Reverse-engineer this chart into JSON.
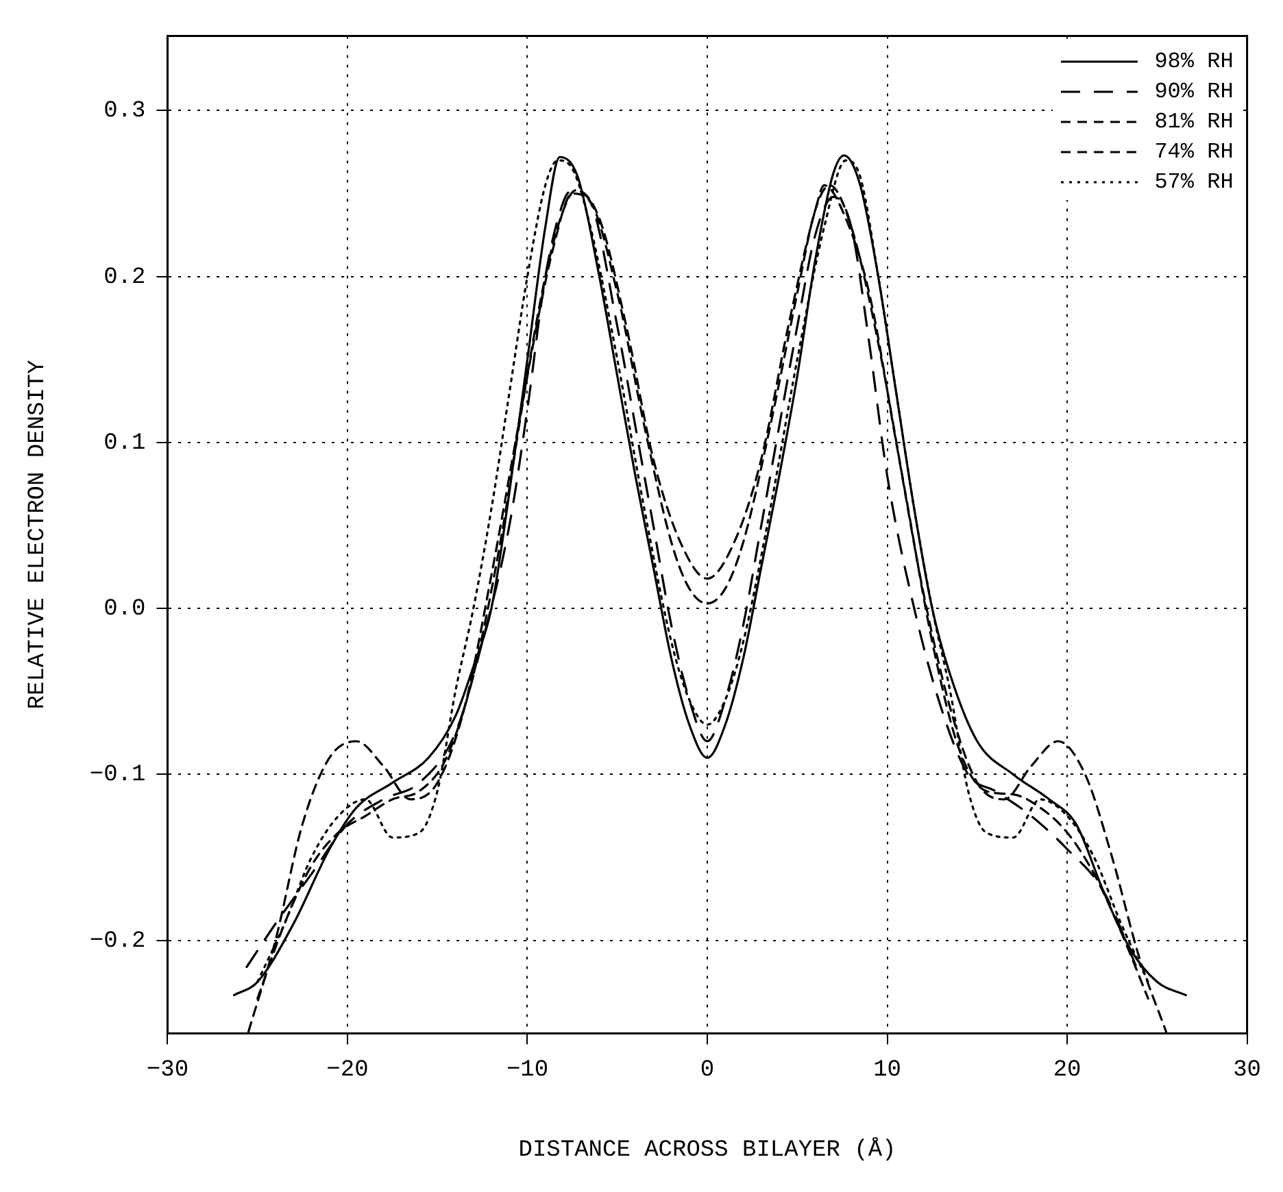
{
  "chart_data": {
    "type": "line",
    "xlabel": "DISTANCE ACROSS BILAYER (Å)",
    "ylabel": "RELATIVE ELECTRON DENSITY",
    "xlim": [
      -30,
      30
    ],
    "xticks": [
      {
        "value": -30,
        "label": "−30"
      },
      {
        "value": -20,
        "label": "−20"
      },
      {
        "value": -10,
        "label": "−10"
      },
      0,
      10,
      20,
      30
    ],
    "ylim": [
      -0.256,
      0.345
    ],
    "yticks": [
      {
        "value": -0.2,
        "label": "−0.2"
      },
      {
        "value": -0.1,
        "label": "−0.1"
      },
      {
        "value": 0,
        "label": "0.0"
      },
      0.1,
      0.2,
      0.3
    ],
    "grid": true,
    "legend": "top right",
    "marker": "none",
    "series": [
      {
        "name": "98% RH",
        "color": "#000000",
        "line_style": "solid",
        "x": [
          -26.3,
          -25,
          -23,
          -21,
          -19.5,
          -17.5,
          -15.5,
          -14,
          -13,
          -12,
          -11,
          -10,
          -9,
          -8.2,
          -7.2,
          -6,
          -5,
          -4,
          -3,
          -2,
          -1,
          0,
          1,
          2,
          3,
          4,
          5,
          6,
          7,
          7.6,
          8.5,
          9.5,
          10.5,
          11.5,
          12.5,
          13.5,
          15,
          17,
          19,
          20.5,
          22,
          23.5,
          25,
          26.6
        ],
        "values": [
          -0.233,
          -0.225,
          -0.19,
          -0.145,
          -0.12,
          -0.105,
          -0.09,
          -0.065,
          -0.035,
          0,
          0.07,
          0.15,
          0.23,
          0.272,
          0.26,
          0.2,
          0.14,
          0.08,
          0.025,
          -0.03,
          -0.07,
          -0.09,
          -0.07,
          -0.03,
          0.025,
          0.08,
          0.14,
          0.21,
          0.262,
          0.273,
          0.255,
          0.2,
          0.13,
          0.06,
          0.0,
          -0.04,
          -0.08,
          -0.1,
          -0.115,
          -0.13,
          -0.17,
          -0.205,
          -0.225,
          -0.233
        ]
      },
      {
        "name": "90% RH",
        "color": "#000000",
        "line_style": "dashed",
        "x": [
          -25.6,
          -24,
          -22,
          -20,
          -18,
          -16,
          -14,
          -12.5,
          -11,
          -10,
          -9,
          -8,
          -7.5,
          -6.5,
          -5,
          -4,
          -3,
          -2,
          -1,
          0,
          1,
          2,
          3,
          4,
          5,
          6,
          7,
          8,
          9,
          10,
          11.5,
          13,
          14.5,
          16,
          18,
          20,
          22,
          24
        ],
        "values": [
          -0.216,
          -0.19,
          -0.16,
          -0.13,
          -0.115,
          -0.105,
          -0.075,
          -0.02,
          0.05,
          0.12,
          0.2,
          0.245,
          0.252,
          0.245,
          0.17,
          0.11,
          0.05,
          -0.01,
          -0.055,
          -0.08,
          -0.055,
          -0.01,
          0.05,
          0.11,
          0.17,
          0.225,
          0.248,
          0.23,
          0.16,
          0.08,
          0.0,
          -0.06,
          -0.1,
          -0.11,
          -0.125,
          -0.145,
          -0.17,
          -0.22
        ]
      },
      {
        "name": "81% RH",
        "color": "#000000",
        "line_style": "dashed",
        "x": [
          -25.5,
          -24,
          -22.5,
          -21,
          -19.5,
          -18,
          -16.5,
          -15,
          -13.5,
          -12,
          -10.5,
          -9,
          -8,
          -7.3,
          -6,
          -4.5,
          -3,
          -1.5,
          0,
          1.5,
          3,
          4.5,
          6,
          6.5,
          7.5,
          9,
          10.5,
          12,
          13.5,
          15,
          16.5,
          18,
          19.5,
          21,
          22.5,
          24,
          25.5
        ],
        "values": [
          -0.255,
          -0.2,
          -0.13,
          -0.09,
          -0.08,
          -0.095,
          -0.115,
          -0.105,
          -0.06,
          0.02,
          0.11,
          0.2,
          0.24,
          0.252,
          0.235,
          0.17,
          0.09,
          0.04,
          0.018,
          0.04,
          0.09,
          0.17,
          0.24,
          0.255,
          0.24,
          0.19,
          0.1,
          0.01,
          -0.06,
          -0.105,
          -0.115,
          -0.095,
          -0.08,
          -0.1,
          -0.15,
          -0.21,
          -0.255
        ]
      },
      {
        "name": "74% RH",
        "color": "#000000",
        "line_style": "dashed",
        "x": [
          -25,
          -23.5,
          -22,
          -20.5,
          -19,
          -17.5,
          -16,
          -14.5,
          -13,
          -11.5,
          -10,
          -8.5,
          -7.5,
          -6.5,
          -5,
          -3.5,
          -2,
          -1,
          0,
          1,
          2,
          3.5,
          5,
          6,
          6.8,
          8,
          9.5,
          11,
          12.5,
          14,
          15.5,
          17,
          18.5,
          20,
          21.5,
          23,
          24.5
        ],
        "values": [
          -0.235,
          -0.19,
          -0.155,
          -0.135,
          -0.125,
          -0.115,
          -0.11,
          -0.09,
          -0.04,
          0.04,
          0.14,
          0.22,
          0.25,
          0.245,
          0.19,
          0.11,
          0.04,
          0.012,
          0.003,
          0.012,
          0.04,
          0.11,
          0.19,
          0.24,
          0.255,
          0.23,
          0.16,
          0.07,
          -0.02,
          -0.085,
          -0.11,
          -0.112,
          -0.12,
          -0.135,
          -0.16,
          -0.195,
          -0.235
        ]
      },
      {
        "name": "57% RH",
        "color": "#000000",
        "line_style": "dotted",
        "x": [
          -25,
          -23.5,
          -22,
          -20.5,
          -19,
          -17.5,
          -16,
          -15,
          -14,
          -13,
          -12,
          -11,
          -10,
          -9,
          -8.3,
          -7.5,
          -6.5,
          -5,
          -3.5,
          -2,
          -1,
          0,
          1,
          2,
          3.5,
          5,
          6.5,
          7.7,
          8.5,
          9.5,
          10.5,
          11.5,
          12.5,
          13.5,
          14.5,
          15.5,
          17,
          18.5,
          20,
          21.5,
          23,
          24.5
        ],
        "values": [
          -0.225,
          -0.19,
          -0.15,
          -0.125,
          -0.115,
          -0.138,
          -0.135,
          -0.11,
          -0.05,
          0.0,
          0.06,
          0.13,
          0.2,
          0.255,
          0.27,
          0.265,
          0.23,
          0.15,
          0.06,
          -0.02,
          -0.055,
          -0.07,
          -0.055,
          -0.02,
          0.06,
          0.15,
          0.23,
          0.27,
          0.26,
          0.2,
          0.13,
          0.06,
          0.0,
          -0.05,
          -0.11,
          -0.135,
          -0.138,
          -0.115,
          -0.125,
          -0.15,
          -0.19,
          -0.225
        ]
      }
    ]
  }
}
